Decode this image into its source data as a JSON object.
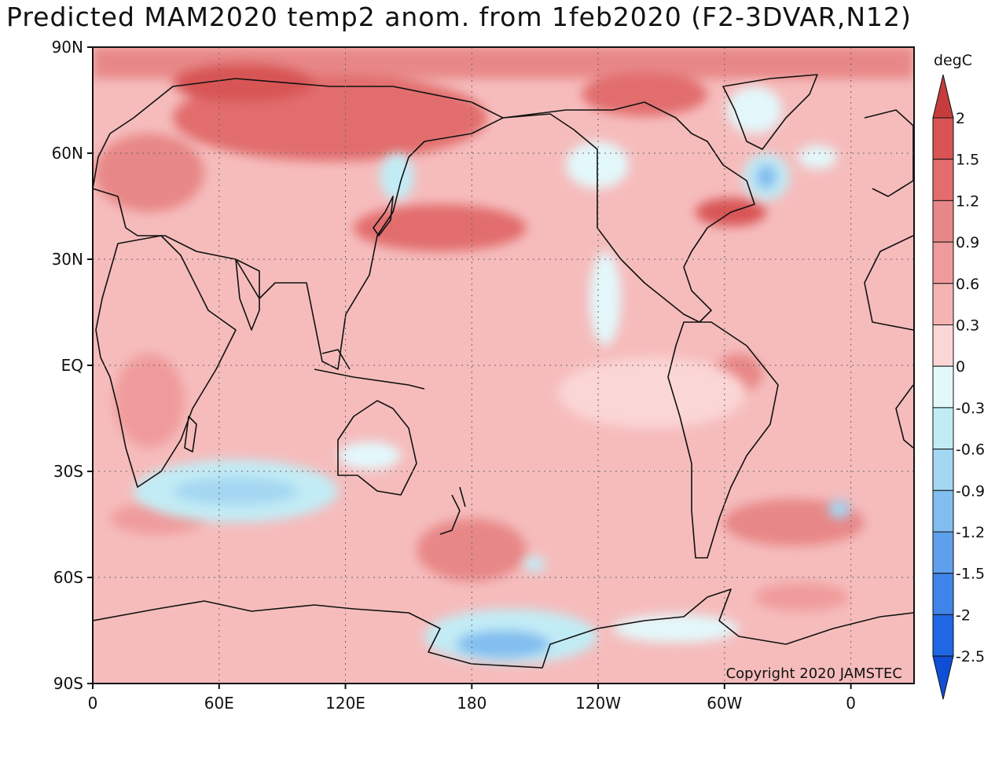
{
  "title": "Predicted MAM2020 temp2 anom. from 1feb2020 (F2-3DVAR,N12)",
  "copyright": "Copyright 2020 JAMSTEC",
  "colorbar": {
    "unit": "degC",
    "levels": [
      "2",
      "1.5",
      "1.2",
      "0.9",
      "0.6",
      "0.3",
      "0",
      "-0.3",
      "-0.6",
      "-0.9",
      "-1.2",
      "-1.5",
      "-2",
      "-2.5"
    ],
    "colors": [
      "#c43c3c",
      "#d85454",
      "#e26d6d",
      "#e88787",
      "#f09b9b",
      "#f5b4b4",
      "#fbd6d6",
      "#e3f8fb",
      "#c2ecf5",
      "#a4d7f2",
      "#82bdef",
      "#5fa0ec",
      "#3f84e8",
      "#2067e3",
      "#0f4fd6"
    ]
  },
  "axes": {
    "lat_labels": [
      {
        "text": "90N",
        "lat": 90
      },
      {
        "text": "60N",
        "lat": 60
      },
      {
        "text": "30N",
        "lat": 30
      },
      {
        "text": "EQ",
        "lat": 0
      },
      {
        "text": "30S",
        "lat": -30
      },
      {
        "text": "60S",
        "lat": -60
      },
      {
        "text": "90S",
        "lat": -90
      }
    ],
    "lon_labels": [
      {
        "text": "0",
        "lon": 0
      },
      {
        "text": "60E",
        "lon": 60
      },
      {
        "text": "120E",
        "lon": 120
      },
      {
        "text": "180",
        "lon": 180
      },
      {
        "text": "120W",
        "lon": 240
      },
      {
        "text": "60W",
        "lon": 300
      },
      {
        "text": "0",
        "lon": 360
      }
    ],
    "lon_range": [
      0,
      390
    ],
    "lat_range": [
      -90,
      90
    ]
  },
  "map": {
    "background_anomaly": "0.3",
    "region_colors": {
      "warm_1.5": "#d85454",
      "warm_1.2": "#e26d6d",
      "warm_0.9": "#e88787",
      "warm_0.6": "#f09b9b",
      "warm_0.3": "#f5b4b4",
      "neutral": "#fbd6d6",
      "cool_-0.3": "#e3f8fb",
      "cool_-0.6": "#c2ecf5",
      "cool_-0.9": "#a4d7f2",
      "cool_-1.2": "#82bdef"
    }
  }
}
